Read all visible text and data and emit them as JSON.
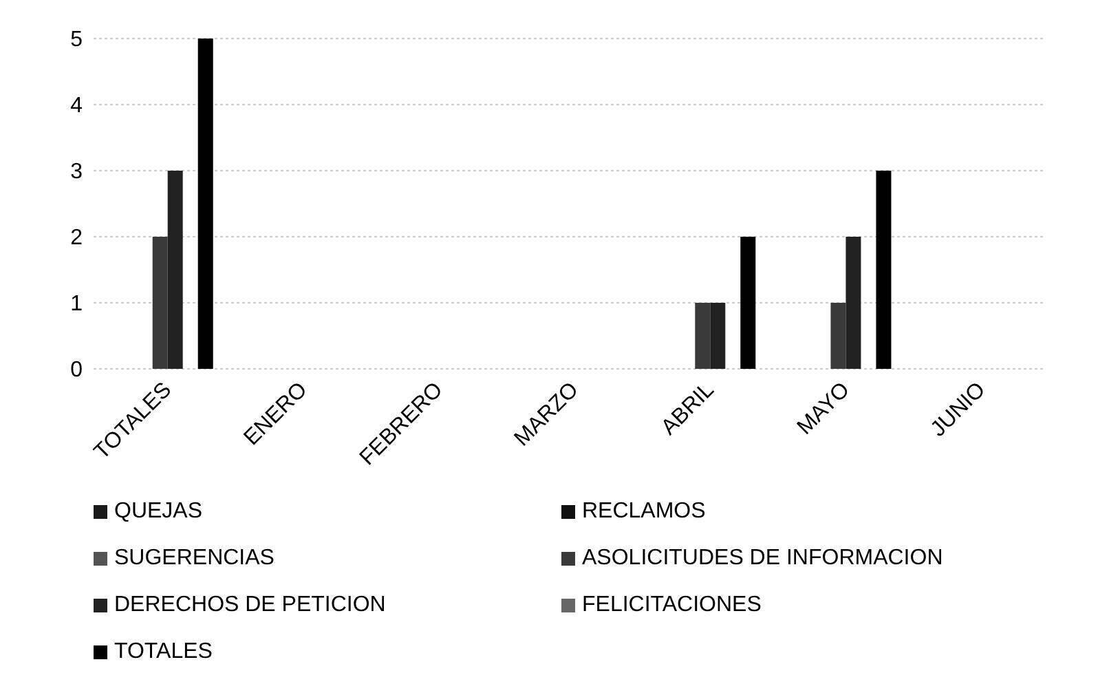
{
  "chart_data": {
    "type": "bar",
    "categories": [
      "TOTALES",
      "ENERO",
      "FEBRERO",
      "MARZO",
      "ABRIL",
      "MAYO",
      "JUNIO"
    ],
    "series": [
      {
        "name": "QUEJAS",
        "color": "#1a1a1a",
        "values": [
          0,
          0,
          0,
          0,
          0,
          0,
          0
        ]
      },
      {
        "name": "RECLAMOS",
        "color": "#111111",
        "values": [
          0,
          0,
          0,
          0,
          0,
          0,
          0
        ]
      },
      {
        "name": "SUGERENCIAS",
        "color": "#555555",
        "values": [
          0,
          0,
          0,
          0,
          0,
          0,
          0
        ]
      },
      {
        "name": "ASOLICITUDES DE INFORMACION",
        "color": "#3a3a3a",
        "values": [
          2,
          0,
          0,
          0,
          1,
          1,
          0
        ]
      },
      {
        "name": "DERECHOS DE PETICION",
        "color": "#222222",
        "values": [
          3,
          0,
          0,
          0,
          1,
          2,
          0
        ]
      },
      {
        "name": "FELICITACIONES",
        "color": "#666666",
        "values": [
          0,
          0,
          0,
          0,
          0,
          0,
          0
        ]
      },
      {
        "name": "TOTALES",
        "color": "#000000",
        "values": [
          5,
          0,
          0,
          0,
          2,
          3,
          0
        ]
      }
    ],
    "ylim": [
      0,
      5
    ],
    "yticks": [
      0,
      1,
      2,
      3,
      4,
      5
    ],
    "grid": "y",
    "legend": "bottom"
  }
}
